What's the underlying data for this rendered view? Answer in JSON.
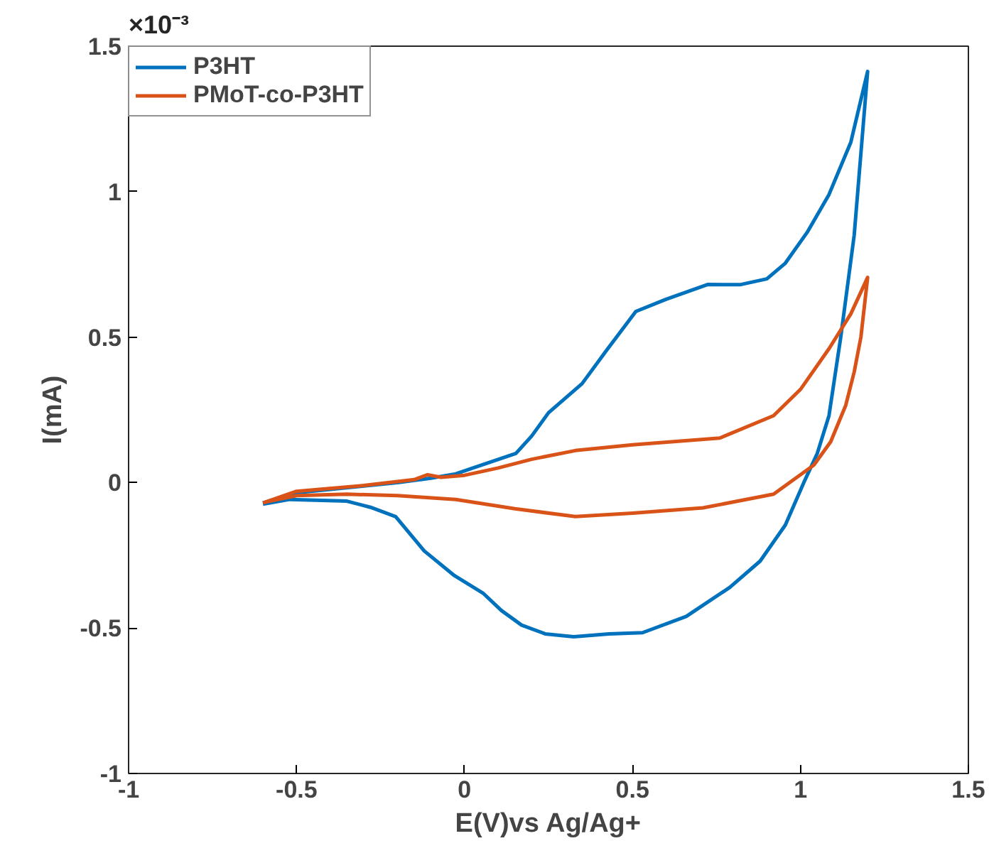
{
  "chart_data": {
    "type": "line",
    "xlabel": "E(V)vs Ag/Ag+",
    "ylabel": "I(mA)",
    "annotations": [
      "×10⁻³"
    ],
    "xlim": [
      -1,
      1.5
    ],
    "xticks": [
      -1,
      -0.5,
      0,
      0.5,
      1,
      1.5
    ],
    "ylim": [
      -1,
      1.5
    ],
    "yticks": [
      -1,
      -0.5,
      0,
      0.5,
      1,
      1.5
    ],
    "grid": false,
    "legend": "top left",
    "line_style": "solid",
    "marker": "none",
    "series": [
      {
        "name": "P3HT",
        "color": "#0072bd",
        "x": [
          -0.6,
          -0.5,
          -0.3,
          -0.2,
          -0.1,
          -0.026,
          0.05,
          0.153,
          0.2,
          0.25,
          0.35,
          0.42,
          0.51,
          0.6,
          0.725,
          0.82,
          0.9,
          0.955,
          1.02,
          1.085,
          1.15,
          1.2,
          1.16,
          1.12,
          1.085,
          1.05,
          1.01,
          0.955,
          0.88,
          0.79,
          0.66,
          0.53,
          0.43,
          0.325,
          0.24,
          0.17,
          0.11,
          0.055,
          -0.03,
          -0.12,
          -0.205,
          -0.28,
          -0.35,
          -0.52,
          -0.6
        ],
        "values": [
          -0.07,
          -0.035,
          -0.012,
          0.0,
          0.015,
          0.03,
          0.06,
          0.1,
          0.16,
          0.24,
          0.34,
          0.45,
          0.588,
          0.63,
          0.681,
          0.68,
          0.7,
          0.754,
          0.86,
          0.99,
          1.17,
          1.413,
          0.85,
          0.5,
          0.23,
          0.1,
          0.0,
          -0.146,
          -0.27,
          -0.36,
          -0.46,
          -0.516,
          -0.52,
          -0.53,
          -0.52,
          -0.49,
          -0.44,
          -0.38,
          -0.32,
          -0.235,
          -0.117,
          -0.085,
          -0.064,
          -0.058,
          -0.074
        ]
      },
      {
        "name": "PMoT-co-P3HT",
        "color": "#d95319",
        "x": [
          -0.6,
          -0.5,
          -0.3,
          -0.15,
          -0.11,
          -0.07,
          0.0,
          0.1,
          0.2,
          0.33,
          0.5,
          0.76,
          0.92,
          1.0,
          1.085,
          1.15,
          1.2,
          1.18,
          1.16,
          1.135,
          1.09,
          1.04,
          0.92,
          0.71,
          0.5,
          0.33,
          0.15,
          -0.026,
          -0.2,
          -0.35,
          -0.5,
          -0.59
        ],
        "values": [
          -0.07,
          -0.03,
          -0.01,
          0.01,
          0.027,
          0.018,
          0.025,
          0.05,
          0.08,
          0.11,
          0.13,
          0.153,
          0.23,
          0.32,
          0.46,
          0.58,
          0.705,
          0.5,
          0.38,
          0.266,
          0.14,
          0.06,
          -0.04,
          -0.087,
          -0.105,
          -0.117,
          -0.09,
          -0.058,
          -0.045,
          -0.04,
          -0.045,
          -0.066
        ]
      }
    ]
  }
}
